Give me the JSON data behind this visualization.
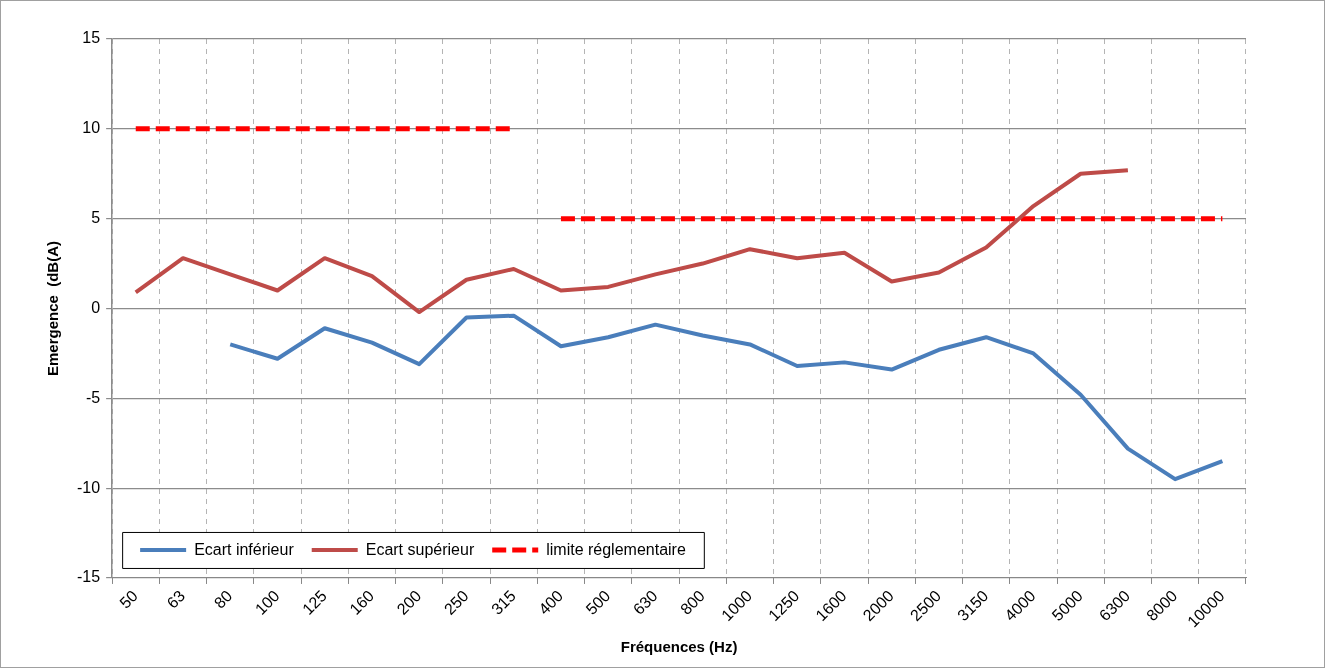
{
  "chart_data": {
    "type": "line",
    "xlabel": "Fréquences (Hz)",
    "ylabel": "Emergence  (dB(A)",
    "categories": [
      "50",
      "63",
      "80",
      "100",
      "125",
      "160",
      "200",
      "250",
      "315",
      "400",
      "500",
      "630",
      "800",
      "1000",
      "1250",
      "1600",
      "2000",
      "2500",
      "3150",
      "4000",
      "5000",
      "6300",
      "8000",
      "10000"
    ],
    "series": [
      {
        "name": "Ecart inférieur",
        "color": "#4a7ebb",
        "values": [
          null,
          null,
          -2.0,
          -2.8,
          -1.1,
          -1.9,
          -3.1,
          -0.5,
          -0.4,
          -2.1,
          -1.6,
          -0.9,
          -1.5,
          -2.0,
          -3.2,
          -3.0,
          -3.4,
          -2.3,
          -1.6,
          -2.5,
          -4.8,
          -7.8,
          -9.5,
          -8.5
        ]
      },
      {
        "name": "Ecart supérieur",
        "color": "#be4b48",
        "values": [
          0.9,
          2.8,
          1.9,
          1.0,
          2.8,
          1.8,
          -0.2,
          1.6,
          2.2,
          1.0,
          1.2,
          1.9,
          2.5,
          3.3,
          2.8,
          3.1,
          1.5,
          2.0,
          3.4,
          5.7,
          7.5,
          7.7,
          null,
          null
        ]
      },
      {
        "name": "limite réglementaire",
        "color": "#ff0000",
        "line_style": "dashed",
        "values": [
          10,
          10,
          10,
          10,
          10,
          10,
          10,
          10,
          10,
          5,
          5,
          5,
          5,
          5,
          5,
          5,
          5,
          5,
          5,
          5,
          5,
          5,
          5,
          5
        ]
      }
    ],
    "ylim": [
      -15,
      15
    ],
    "yticks": [
      -15,
      -10,
      -5,
      0,
      5,
      10,
      15
    ],
    "grid": true,
    "legend": "bottom left",
    "marker": "none",
    "line_style": "solid"
  }
}
